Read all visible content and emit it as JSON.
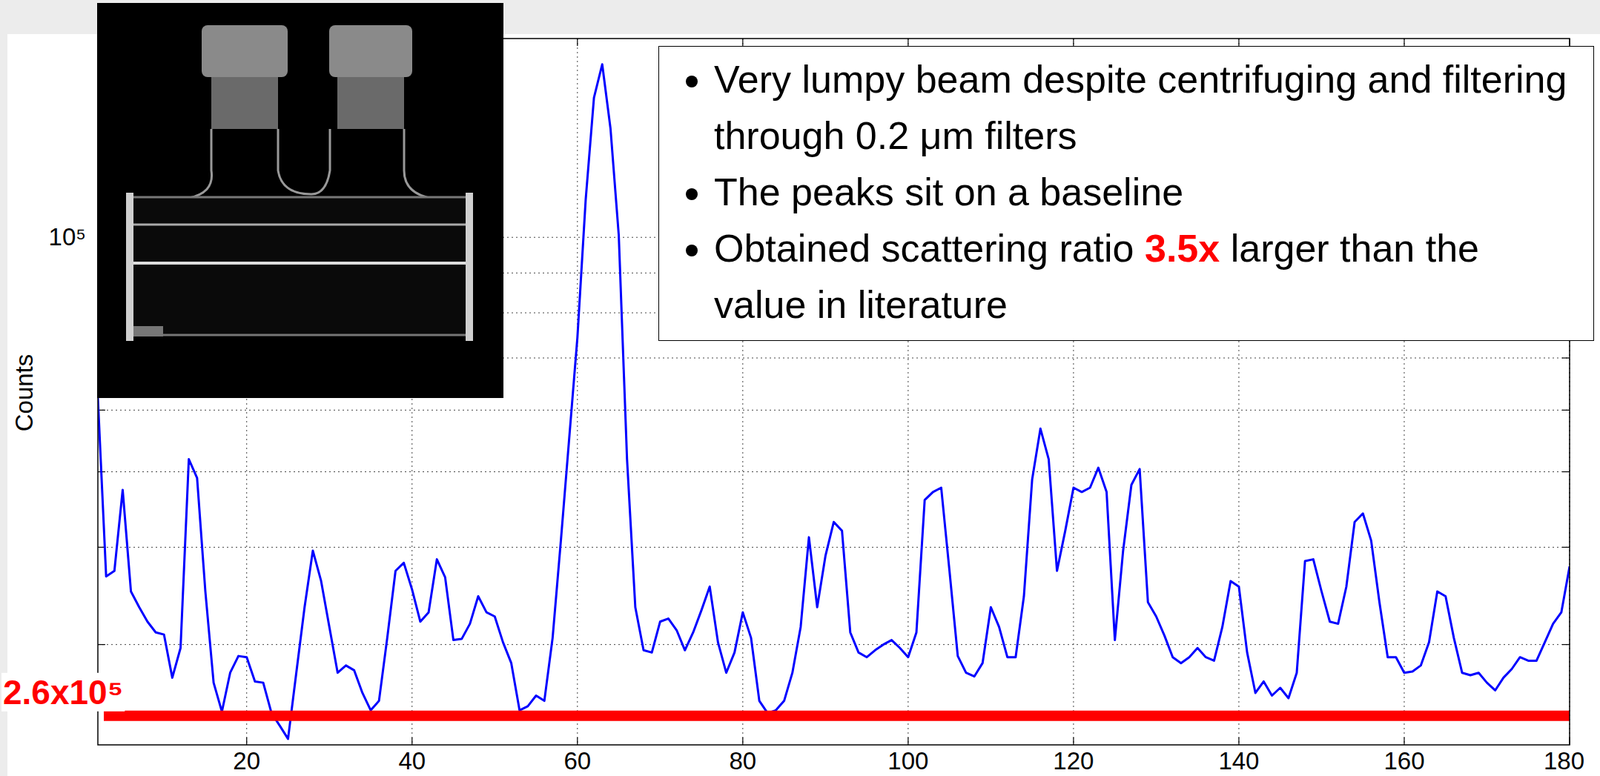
{
  "chart_data": {
    "type": "line",
    "y_label": "Counts",
    "x": [
      2,
      3,
      4,
      5,
      6,
      7,
      8,
      9,
      10,
      11,
      12,
      13,
      14,
      15,
      16,
      17,
      18,
      19,
      20,
      21,
      22,
      23,
      24,
      25,
      26,
      27,
      28,
      29,
      30,
      31,
      32,
      33,
      34,
      35,
      36,
      37,
      38,
      39,
      40,
      41,
      42,
      43,
      44,
      45,
      46,
      47,
      48,
      49,
      50,
      51,
      52,
      53,
      54,
      55,
      56,
      57,
      58,
      59,
      60,
      61,
      62,
      63,
      64,
      65,
      66,
      67,
      68,
      69,
      70,
      71,
      72,
      73,
      74,
      75,
      76,
      77,
      78,
      79,
      80,
      81,
      82,
      83,
      84,
      85,
      86,
      87,
      88,
      89,
      90,
      91,
      92,
      93,
      94,
      95,
      96,
      97,
      98,
      99,
      100,
      101,
      102,
      103,
      104,
      105,
      106,
      107,
      108,
      109,
      110,
      111,
      112,
      113,
      114,
      115,
      116,
      117,
      118,
      119,
      120,
      121,
      122,
      123,
      124,
      125,
      126,
      127,
      128,
      129,
      130,
      131,
      132,
      133,
      134,
      135,
      136,
      137,
      138,
      139,
      140,
      141,
      142,
      143,
      144,
      145,
      146,
      147,
      148,
      149,
      150,
      151,
      152,
      153,
      154,
      155,
      156,
      157,
      158,
      159,
      160,
      161,
      162,
      163,
      164,
      165,
      166,
      167,
      168,
      169,
      170,
      171,
      172,
      173,
      174,
      175,
      176,
      177,
      178,
      179,
      180
    ],
    "values": [
      62200,
      36700,
      37300,
      47400,
      35100,
      33500,
      32100,
      31100,
      30900,
      27200,
      29700,
      51900,
      49100,
      35100,
      26800,
      24600,
      27600,
      29000,
      28900,
      26900,
      26800,
      24500,
      23600,
      22700,
      27600,
      33500,
      39600,
      36200,
      31600,
      27600,
      28200,
      27800,
      26000,
      24700,
      25400,
      30600,
      37300,
      38200,
      35300,
      32100,
      33000,
      38600,
      36600,
      30400,
      30500,
      31900,
      34600,
      33000,
      32600,
      30200,
      28400,
      24700,
      25000,
      25800,
      25400,
      30600,
      40800,
      55100,
      74400,
      111800,
      151100,
      166800,
      138000,
      100600,
      51900,
      33500,
      29500,
      29300,
      32100,
      32400,
      31300,
      29500,
      31100,
      33200,
      35600,
      30200,
      27600,
      29300,
      33000,
      30600,
      25400,
      24500,
      24700,
      25400,
      27600,
      31600,
      41200,
      33500,
      39000,
      43100,
      42000,
      31100,
      29300,
      28900,
      29500,
      30000,
      30400,
      29700,
      28900,
      31100,
      46000,
      47100,
      47700,
      37300,
      29000,
      27600,
      27300,
      28400,
      33500,
      31600,
      28900,
      28900,
      34600,
      48900,
      56800,
      51900,
      37300,
      42000,
      47700,
      47100,
      47700,
      50600,
      47100,
      30400,
      39600,
      48100,
      50400,
      34000,
      32600,
      30800,
      28900,
      28400,
      28900,
      29700,
      28900,
      28600,
      31600,
      36200,
      35600,
      29300,
      26000,
      26900,
      25800,
      26400,
      25600,
      27600,
      38400,
      38600,
      35100,
      32100,
      31900,
      35600,
      43100,
      44200,
      40800,
      34000,
      28900,
      28900,
      27600,
      27700,
      28200,
      30200,
      35100,
      34600,
      30600,
      27600,
      27400,
      27600,
      26800,
      26200,
      27200,
      27900,
      28900,
      28600,
      28600,
      30200,
      31900,
      33000,
      37800
    ],
    "color": "#0000ff",
    "xlim": [
      2,
      180
    ],
    "xticks": [
      20,
      40,
      60,
      80,
      100,
      120,
      140,
      160,
      180
    ],
    "ylim": [
      22300,
      180000
    ],
    "yticks": [
      {
        "value": 30000,
        "label": null
      },
      {
        "value": 40000,
        "label": null
      },
      {
        "value": 50000,
        "label": null
      },
      {
        "value": 60000,
        "label": null
      },
      {
        "value": 70000,
        "label": null
      },
      {
        "value": 80000,
        "label": null
      },
      {
        "value": 90000,
        "label": null
      },
      {
        "value": 100000,
        "label": "10⁵"
      }
    ],
    "log": "y",
    "grid": true,
    "reference_line": {
      "text": "2.6x10⁵",
      "y": 24300,
      "color": "#ff0000"
    },
    "bullets": [
      "Very lumpy beam despite centrifuging and filtering through 0.2 μm filters",
      "The peaks sit on a baseline",
      [
        {
          "text": "Obtained scattering ratio "
        },
        {
          "text": "3.5x",
          "color": "#ff0000"
        },
        {
          "text": " larger than the value in literature"
        }
      ]
    ]
  }
}
